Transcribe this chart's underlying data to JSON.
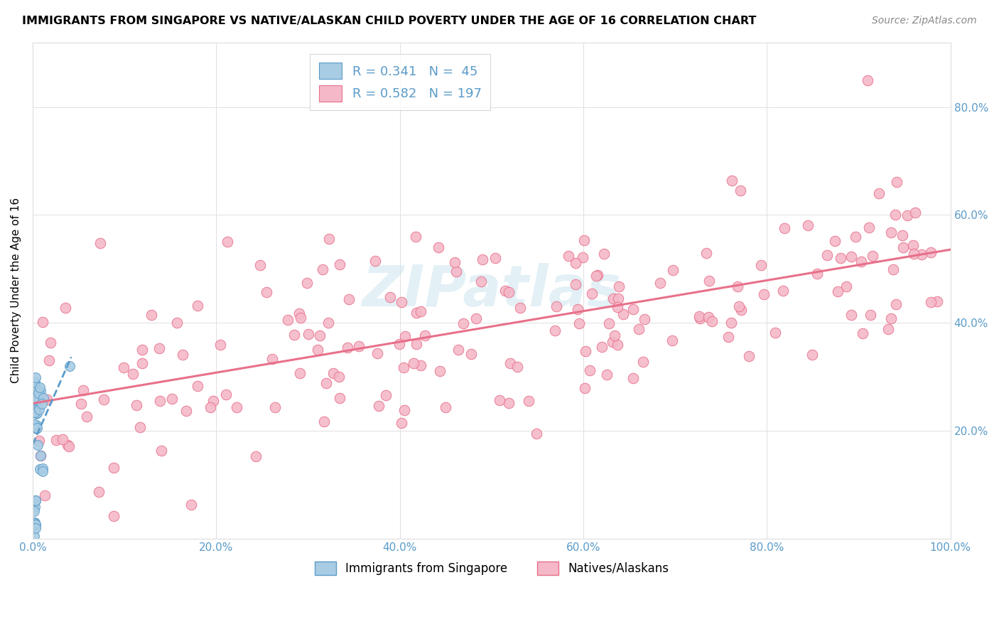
{
  "title": "IMMIGRANTS FROM SINGAPORE VS NATIVE/ALASKAN CHILD POVERTY UNDER THE AGE OF 16 CORRELATION CHART",
  "source": "Source: ZipAtlas.com",
  "ylabel": "Child Poverty Under the Age of 16",
  "xlim": [
    0.0,
    1.0
  ],
  "ylim": [
    0.0,
    0.92
  ],
  "xtick_vals": [
    0.0,
    0.2,
    0.4,
    0.6,
    0.8,
    1.0
  ],
  "ytick_vals": [
    0.0,
    0.2,
    0.4,
    0.6,
    0.8
  ],
  "xtick_labels": [
    "0.0%",
    "20.0%",
    "40.0%",
    "60.0%",
    "80.0%",
    "100.0%"
  ],
  "ytick_labels": [
    "",
    "20.0%",
    "40.0%",
    "60.0%",
    "80.0%"
  ],
  "blue_fill": "#a8cce4",
  "blue_edge": "#5b9bc8",
  "pink_fill": "#f4b8c8",
  "pink_edge": "#e8708a",
  "trendline_blue": "#5b9bc8",
  "trendline_pink": "#e8708a",
  "watermark": "ZIPatlas",
  "tick_color": "#5b9bc8",
  "grid_color": "#e0e0e0",
  "legend_label_1": "R = 0.341   N =  45",
  "legend_label_2": "R = 0.582   N = 197",
  "bot_legend_1": "Immigrants from Singapore",
  "bot_legend_2": "Natives/Alaskans"
}
